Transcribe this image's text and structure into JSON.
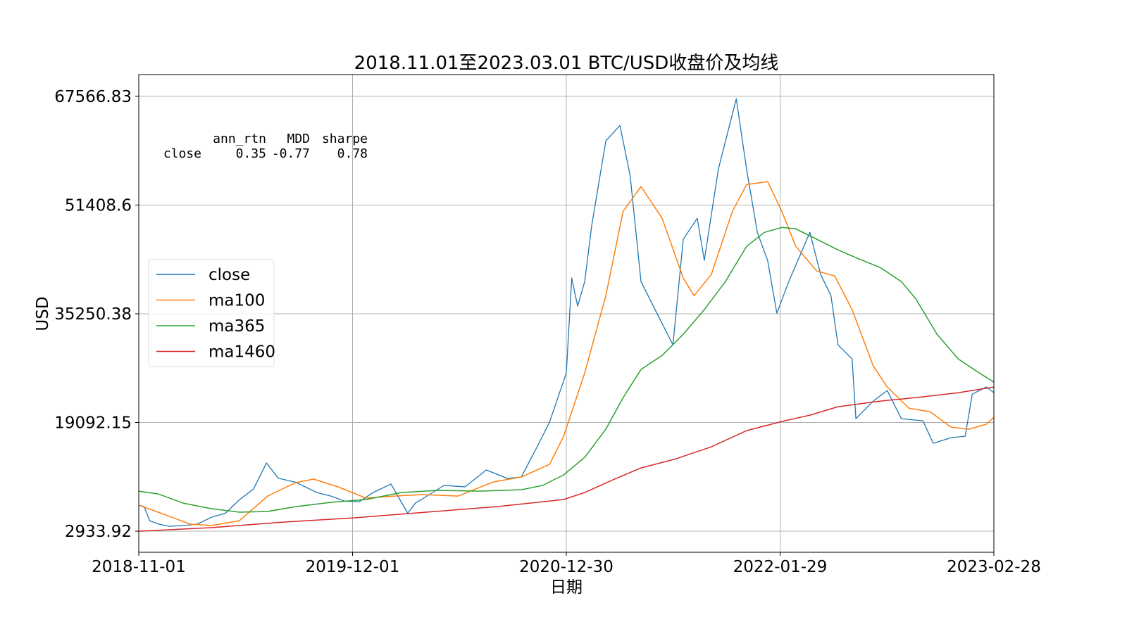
{
  "chart_data": {
    "type": "line",
    "title": "2018.11.01至2023.03.01 BTC/USD收盘价及均线",
    "xlabel": "日期",
    "ylabel": "USD",
    "xlim": [
      "2018-11-01",
      "2023-02-28"
    ],
    "ylim": [
      -200,
      70800
    ],
    "x_ticks": [
      "2018-11-01",
      "2019-12-01",
      "2020-12-30",
      "2022-01-29",
      "2023-02-28"
    ],
    "y_ticks": [
      2933.92,
      19092.15,
      35250.38,
      51408.6,
      67566.83
    ],
    "y_tick_labels": [
      "2933.92",
      "19092.15",
      "35250.38",
      "51408.6",
      "67566.83"
    ],
    "grid": true,
    "legend_placement": "center-left",
    "stats_table": {
      "columns": [
        "ann_rtn",
        "MDD",
        "sharpe"
      ],
      "row_label": "close",
      "values": [
        "0.35",
        "-0.77",
        "0.78"
      ]
    },
    "series": [
      {
        "name": "close",
        "color": "#1f77b4",
        "points": [
          [
            "2018-11-01",
            6800
          ],
          [
            "2018-11-11",
            6600
          ],
          [
            "2018-11-21",
            4500
          ],
          [
            "2018-12-07",
            4000
          ],
          [
            "2018-12-27",
            3660
          ],
          [
            "2019-01-22",
            3770
          ],
          [
            "2019-02-17",
            3980
          ],
          [
            "2019-03-15",
            5000
          ],
          [
            "2019-04-10",
            5600
          ],
          [
            "2019-05-06",
            7600
          ],
          [
            "2019-06-01",
            9200
          ],
          [
            "2019-06-25",
            13070
          ],
          [
            "2019-07-17",
            10800
          ],
          [
            "2019-08-18",
            10200
          ],
          [
            "2019-09-26",
            8680
          ],
          [
            "2019-10-22",
            8160
          ],
          [
            "2019-11-17",
            7400
          ],
          [
            "2019-12-13",
            7300
          ],
          [
            "2020-01-08",
            8680
          ],
          [
            "2020-02-10",
            9940
          ],
          [
            "2020-03-12",
            5600
          ],
          [
            "2020-03-26",
            7100
          ],
          [
            "2020-04-21",
            8370
          ],
          [
            "2020-05-18",
            9730
          ],
          [
            "2020-06-26",
            9520
          ],
          [
            "2020-08-04",
            12030
          ],
          [
            "2020-09-12",
            10780
          ],
          [
            "2020-10-08",
            11000
          ],
          [
            "2020-11-03",
            15000
          ],
          [
            "2020-11-29",
            19130
          ],
          [
            "2020-12-30",
            26450
          ],
          [
            "2021-01-09",
            40560
          ],
          [
            "2021-01-20",
            36380
          ],
          [
            "2021-02-02",
            40040
          ],
          [
            "2021-02-15",
            48400
          ],
          [
            "2021-03-13",
            60940
          ],
          [
            "2021-04-08",
            63240
          ],
          [
            "2021-04-27",
            55710
          ],
          [
            "2021-05-17",
            40040
          ],
          [
            "2021-06-12",
            35860
          ],
          [
            "2021-07-15",
            30630
          ],
          [
            "2021-08-03",
            46310
          ],
          [
            "2021-08-29",
            49450
          ],
          [
            "2021-09-11",
            43170
          ],
          [
            "2021-10-07",
            56760
          ],
          [
            "2021-11-09",
            67210
          ],
          [
            "2021-11-28",
            56760
          ],
          [
            "2021-12-18",
            47350
          ],
          [
            "2022-01-06",
            43170
          ],
          [
            "2022-01-23",
            35330
          ],
          [
            "2022-02-14",
            40040
          ],
          [
            "2022-03-25",
            47350
          ],
          [
            "2022-04-14",
            41080
          ],
          [
            "2022-05-03",
            37940
          ],
          [
            "2022-05-16",
            30630
          ],
          [
            "2022-06-11",
            28540
          ],
          [
            "2022-06-18",
            19660
          ],
          [
            "2022-07-20",
            22270
          ],
          [
            "2022-08-15",
            23840
          ],
          [
            "2022-09-10",
            19660
          ],
          [
            "2022-10-20",
            19340
          ],
          [
            "2022-11-08",
            16000
          ],
          [
            "2022-12-11",
            16830
          ],
          [
            "2023-01-06",
            17040
          ],
          [
            "2023-01-19",
            23310
          ],
          [
            "2023-02-14",
            24360
          ],
          [
            "2023-02-28",
            23530
          ]
        ]
      },
      {
        "name": "ma100",
        "color": "#ff7f0e",
        "points": [
          [
            "2018-11-01",
            6800
          ],
          [
            "2018-12-14",
            5550
          ],
          [
            "2019-02-04",
            3980
          ],
          [
            "2019-03-15",
            3770
          ],
          [
            "2019-05-06",
            4500
          ],
          [
            "2019-06-27",
            8160
          ],
          [
            "2019-08-18",
            10150
          ],
          [
            "2019-09-20",
            10670
          ],
          [
            "2019-11-04",
            9520
          ],
          [
            "2019-12-26",
            7850
          ],
          [
            "2020-02-16",
            8160
          ],
          [
            "2020-04-08",
            8370
          ],
          [
            "2020-06-13",
            8160
          ],
          [
            "2020-08-17",
            10250
          ],
          [
            "2020-10-08",
            11000
          ],
          [
            "2020-11-29",
            12860
          ],
          [
            "2020-12-25",
            17040
          ],
          [
            "2021-02-02",
            26450
          ],
          [
            "2021-03-13",
            37950
          ],
          [
            "2021-04-14",
            50490
          ],
          [
            "2021-05-17",
            54150
          ],
          [
            "2021-06-25",
            49450
          ],
          [
            "2021-08-03",
            40560
          ],
          [
            "2021-08-23",
            37950
          ],
          [
            "2021-09-24",
            41080
          ],
          [
            "2021-11-02",
            50490
          ],
          [
            "2021-11-28",
            54460
          ],
          [
            "2022-01-06",
            54880
          ],
          [
            "2022-02-01",
            50490
          ],
          [
            "2022-02-27",
            45260
          ],
          [
            "2022-04-07",
            41600
          ],
          [
            "2022-05-10",
            40870
          ],
          [
            "2022-06-11",
            35860
          ],
          [
            "2022-07-20",
            27500
          ],
          [
            "2022-08-15",
            24360
          ],
          [
            "2022-09-24",
            21220
          ],
          [
            "2022-11-02",
            20700
          ],
          [
            "2022-12-11",
            18400
          ],
          [
            "2023-01-12",
            18090
          ],
          [
            "2023-02-14",
            18820
          ],
          [
            "2023-02-28",
            19860
          ]
        ]
      },
      {
        "name": "ma365",
        "color": "#2ca02c",
        "points": [
          [
            "2018-11-01",
            8890
          ],
          [
            "2018-12-07",
            8470
          ],
          [
            "2019-01-22",
            7110
          ],
          [
            "2019-03-15",
            6280
          ],
          [
            "2019-05-06",
            5760
          ],
          [
            "2019-06-27",
            5860
          ],
          [
            "2019-08-18",
            6590
          ],
          [
            "2019-10-22",
            7220
          ],
          [
            "2019-12-26",
            7640
          ],
          [
            "2020-02-29",
            8680
          ],
          [
            "2020-05-05",
            9000
          ],
          [
            "2020-07-22",
            8890
          ],
          [
            "2020-10-08",
            9100
          ],
          [
            "2020-11-16",
            9730
          ],
          [
            "2020-12-25",
            11300
          ],
          [
            "2021-02-02",
            13910
          ],
          [
            "2021-03-13",
            18090
          ],
          [
            "2021-04-14",
            22790
          ],
          [
            "2021-05-17",
            26970
          ],
          [
            "2021-06-25",
            29060
          ],
          [
            "2021-08-03",
            32200
          ],
          [
            "2021-09-11",
            35860
          ],
          [
            "2021-10-20",
            40040
          ],
          [
            "2021-11-28",
            45260
          ],
          [
            "2021-12-31",
            47350
          ],
          [
            "2022-02-01",
            48080
          ],
          [
            "2022-02-27",
            47870
          ],
          [
            "2022-04-07",
            46310
          ],
          [
            "2022-05-16",
            44740
          ],
          [
            "2022-06-24",
            43380
          ],
          [
            "2022-08-02",
            42130
          ],
          [
            "2022-09-10",
            40040
          ],
          [
            "2022-10-07",
            37430
          ],
          [
            "2022-11-15",
            32200
          ],
          [
            "2022-12-24",
            28540
          ],
          [
            "2023-02-01",
            26450
          ],
          [
            "2023-02-28",
            25090
          ]
        ]
      },
      {
        "name": "ma1460",
        "color": "#d62728",
        "points": [
          [
            "2018-11-01",
            2930
          ],
          [
            "2019-03-15",
            3460
          ],
          [
            "2019-07-26",
            4290
          ],
          [
            "2019-12-05",
            4920
          ],
          [
            "2020-04-15",
            5760
          ],
          [
            "2020-08-24",
            6590
          ],
          [
            "2020-12-25",
            7640
          ],
          [
            "2021-02-02",
            8680
          ],
          [
            "2021-03-26",
            10560
          ],
          [
            "2021-05-17",
            12340
          ],
          [
            "2021-07-21",
            13700
          ],
          [
            "2021-09-24",
            15470
          ],
          [
            "2021-11-28",
            17880
          ],
          [
            "2022-02-01",
            19240
          ],
          [
            "2022-03-25",
            20180
          ],
          [
            "2022-05-16",
            21430
          ],
          [
            "2022-08-02",
            22270
          ],
          [
            "2022-10-07",
            22790
          ],
          [
            "2022-12-24",
            23520
          ],
          [
            "2023-02-28",
            24360
          ]
        ]
      }
    ]
  }
}
